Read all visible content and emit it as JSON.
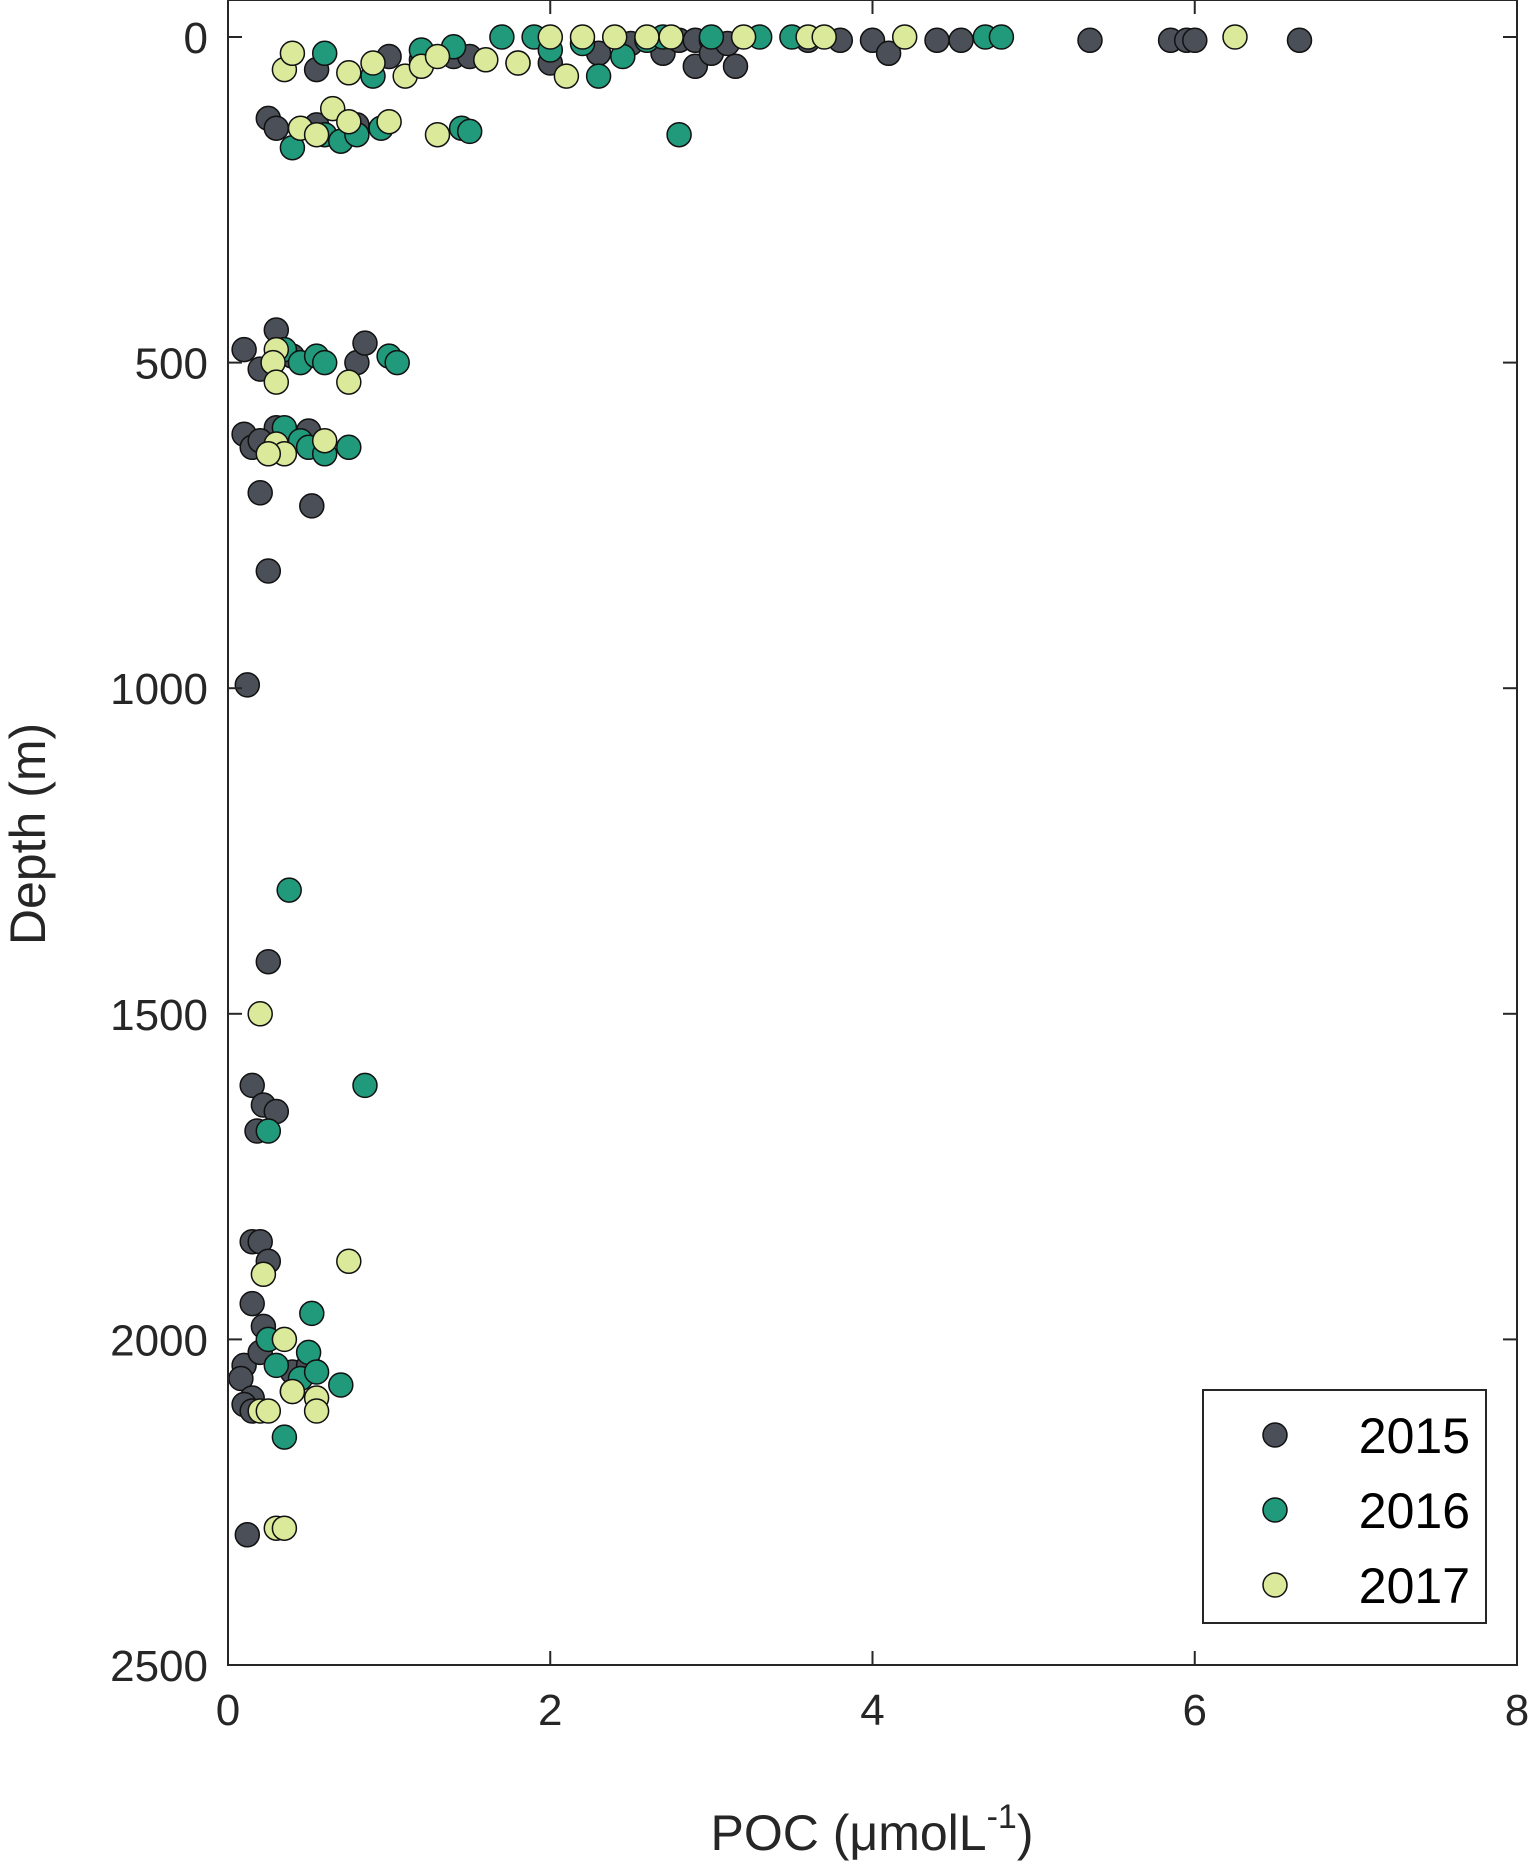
{
  "chart_data": {
    "type": "scatter",
    "xlabel": "POC (μmolL",
    "xlabel_sup": "-1",
    "xlabel_close": ")",
    "ylabel": "Depth (m)",
    "xlim": [
      0,
      8
    ],
    "ylim": [
      0,
      2500
    ],
    "y_reversed": true,
    "x_ticks": [
      0,
      2,
      4,
      6,
      8
    ],
    "y_ticks": [
      0,
      500,
      1000,
      1500,
      2000,
      2500
    ],
    "grid": false,
    "legend_position": "bottom-right",
    "series": [
      {
        "name": "2015",
        "color": "#4a4f58",
        "points": [
          [
            0.55,
            50
          ],
          [
            1.0,
            30
          ],
          [
            1.2,
            35
          ],
          [
            1.4,
            30
          ],
          [
            1.5,
            30
          ],
          [
            1.8,
            40
          ],
          [
            2.0,
            40
          ],
          [
            2.3,
            25
          ],
          [
            2.5,
            10
          ],
          [
            2.7,
            25
          ],
          [
            2.8,
            5
          ],
          [
            2.9,
            5
          ],
          [
            2.9,
            45
          ],
          [
            3.0,
            5
          ],
          [
            3.0,
            25
          ],
          [
            3.1,
            10
          ],
          [
            3.15,
            45
          ],
          [
            3.6,
            5
          ],
          [
            3.8,
            5
          ],
          [
            4.0,
            5
          ],
          [
            4.1,
            25
          ],
          [
            4.4,
            5
          ],
          [
            4.55,
            5
          ],
          [
            5.35,
            5
          ],
          [
            5.85,
            5
          ],
          [
            5.95,
            5
          ],
          [
            6.0,
            5
          ],
          [
            6.65,
            5
          ],
          [
            0.25,
            125
          ],
          [
            0.3,
            140
          ],
          [
            0.55,
            135
          ],
          [
            0.8,
            135
          ],
          [
            0.1,
            480
          ],
          [
            0.3,
            450
          ],
          [
            0.2,
            510
          ],
          [
            0.4,
            490
          ],
          [
            0.8,
            500
          ],
          [
            0.85,
            470
          ],
          [
            0.1,
            610
          ],
          [
            0.15,
            630
          ],
          [
            0.3,
            600
          ],
          [
            0.5,
            605
          ],
          [
            0.2,
            620
          ],
          [
            0.2,
            700
          ],
          [
            0.52,
            720
          ],
          [
            0.25,
            820
          ],
          [
            0.12,
            995
          ],
          [
            0.25,
            1420
          ],
          [
            0.15,
            1610
          ],
          [
            0.22,
            1640
          ],
          [
            0.3,
            1650
          ],
          [
            0.18,
            1680
          ],
          [
            0.15,
            1850
          ],
          [
            0.2,
            1850
          ],
          [
            0.25,
            1880
          ],
          [
            0.15,
            1945
          ],
          [
            0.22,
            1980
          ],
          [
            0.1,
            2040
          ],
          [
            0.2,
            2020
          ],
          [
            0.08,
            2060
          ],
          [
            0.15,
            2090
          ],
          [
            0.1,
            2100
          ],
          [
            0.15,
            2110
          ],
          [
            0.4,
            2050
          ],
          [
            0.5,
            2040
          ],
          [
            0.12,
            2300
          ]
        ]
      },
      {
        "name": "2016",
        "color": "#219a7c",
        "points": [
          [
            0.6,
            25
          ],
          [
            0.9,
            60
          ],
          [
            1.2,
            20
          ],
          [
            1.4,
            15
          ],
          [
            1.7,
            0
          ],
          [
            1.9,
            0
          ],
          [
            2.0,
            20
          ],
          [
            2.2,
            10
          ],
          [
            2.3,
            60
          ],
          [
            2.45,
            30
          ],
          [
            2.6,
            5
          ],
          [
            2.7,
            0
          ],
          [
            3.0,
            0
          ],
          [
            3.3,
            0
          ],
          [
            3.5,
            0
          ],
          [
            4.7,
            0
          ],
          [
            4.8,
            0
          ],
          [
            0.4,
            170
          ],
          [
            0.6,
            150
          ],
          [
            0.7,
            160
          ],
          [
            0.8,
            150
          ],
          [
            0.95,
            140
          ],
          [
            1.45,
            140
          ],
          [
            1.5,
            145
          ],
          [
            2.8,
            150
          ],
          [
            0.35,
            480
          ],
          [
            0.45,
            500
          ],
          [
            0.55,
            490
          ],
          [
            0.6,
            500
          ],
          [
            1.0,
            490
          ],
          [
            1.05,
            500
          ],
          [
            0.35,
            600
          ],
          [
            0.45,
            620
          ],
          [
            0.5,
            630
          ],
          [
            0.6,
            640
          ],
          [
            0.75,
            630
          ],
          [
            0.38,
            1310
          ],
          [
            0.85,
            1610
          ],
          [
            0.25,
            1680
          ],
          [
            0.25,
            2000
          ],
          [
            0.3,
            2040
          ],
          [
            0.4,
            2080
          ],
          [
            0.45,
            2060
          ],
          [
            0.5,
            2020
          ],
          [
            0.55,
            2050
          ],
          [
            0.52,
            1960
          ],
          [
            0.7,
            2070
          ],
          [
            0.35,
            2150
          ]
        ]
      },
      {
        "name": "2017",
        "color": "#dbe99b",
        "points": [
          [
            0.35,
            50
          ],
          [
            0.4,
            25
          ],
          [
            0.75,
            55
          ],
          [
            0.9,
            40
          ],
          [
            1.1,
            60
          ],
          [
            1.2,
            45
          ],
          [
            1.3,
            30
          ],
          [
            1.6,
            35
          ],
          [
            1.8,
            40
          ],
          [
            2.1,
            60
          ],
          [
            2.0,
            0
          ],
          [
            2.2,
            0
          ],
          [
            2.4,
            0
          ],
          [
            2.6,
            0
          ],
          [
            2.75,
            0
          ],
          [
            3.2,
            0
          ],
          [
            3.6,
            0
          ],
          [
            3.7,
            0
          ],
          [
            4.2,
            0
          ],
          [
            6.25,
            0
          ],
          [
            0.45,
            140
          ],
          [
            0.55,
            150
          ],
          [
            0.65,
            110
          ],
          [
            0.75,
            130
          ],
          [
            1.0,
            130
          ],
          [
            1.3,
            150
          ],
          [
            0.3,
            480
          ],
          [
            0.28,
            500
          ],
          [
            0.3,
            530
          ],
          [
            0.75,
            530
          ],
          [
            0.3,
            625
          ],
          [
            0.35,
            640
          ],
          [
            0.6,
            620
          ],
          [
            0.25,
            640
          ],
          [
            0.2,
            1500
          ],
          [
            0.75,
            1880
          ],
          [
            0.22,
            1900
          ],
          [
            0.35,
            2000
          ],
          [
            0.4,
            2080
          ],
          [
            0.2,
            2110
          ],
          [
            0.25,
            2110
          ],
          [
            0.55,
            2090
          ],
          [
            0.55,
            2110
          ],
          [
            0.3,
            2290
          ],
          [
            0.35,
            2290
          ]
        ]
      }
    ]
  }
}
